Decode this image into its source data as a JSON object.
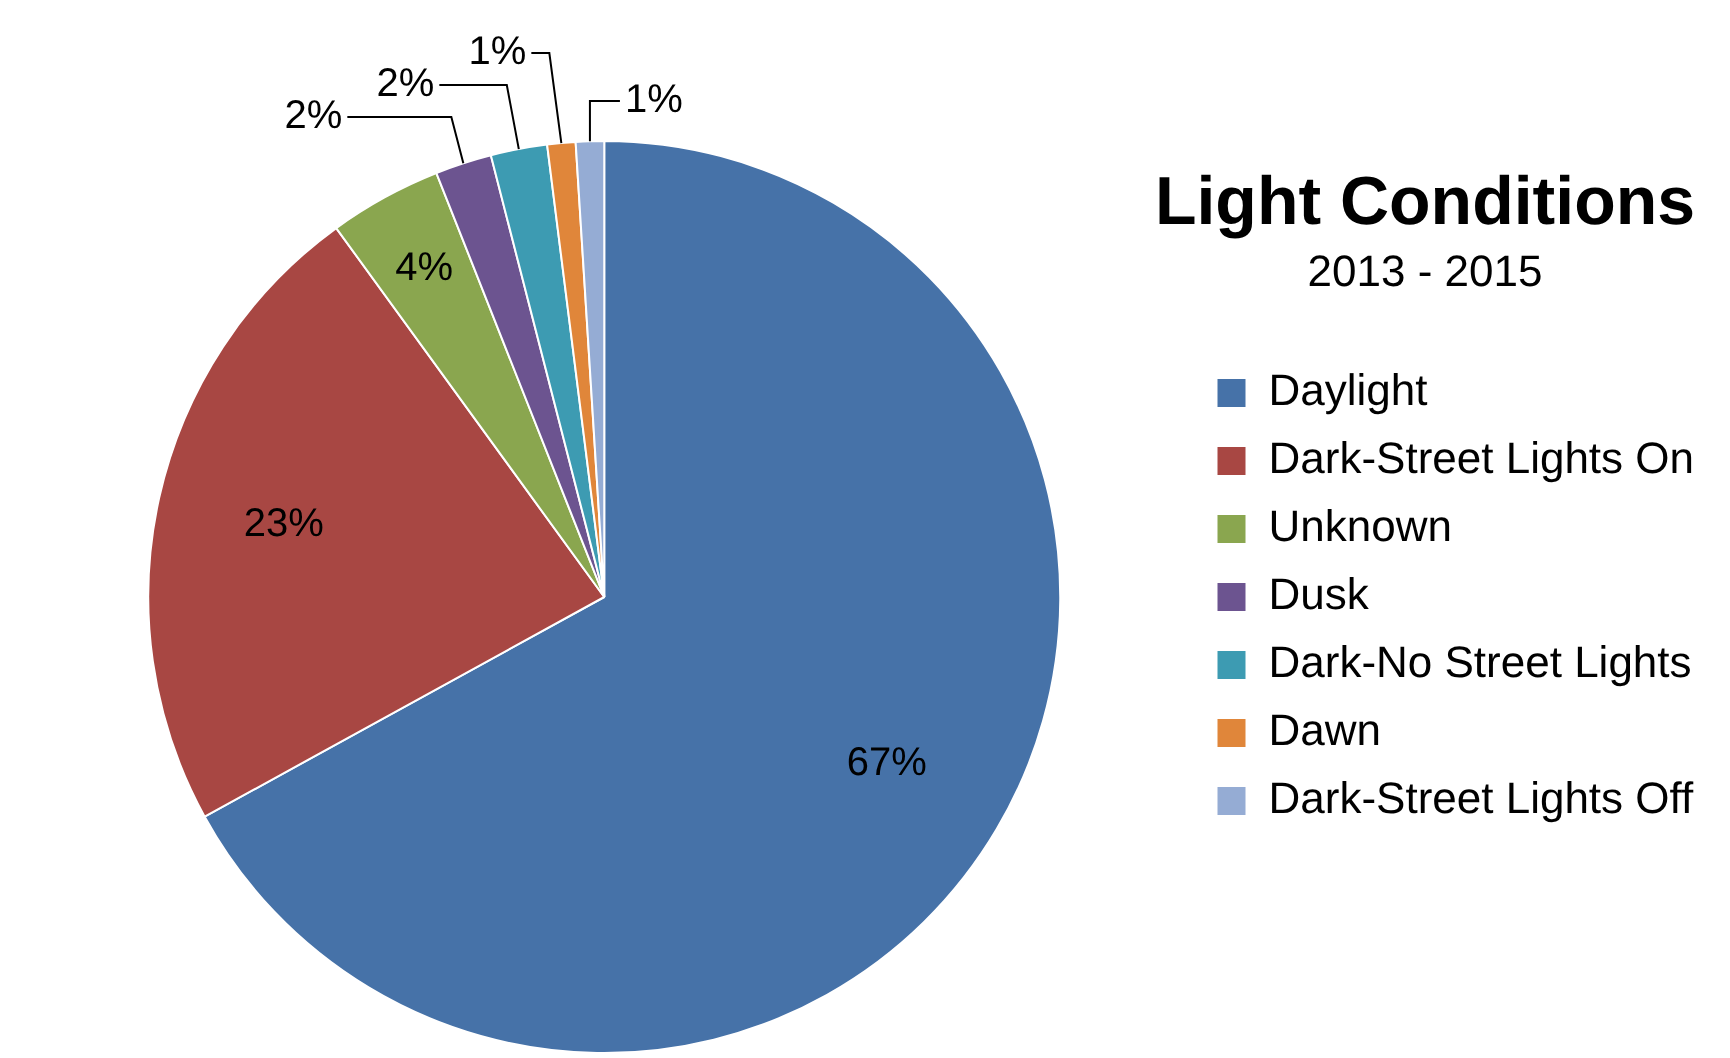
{
  "chart_data": {
    "type": "pie",
    "title": "Light Conditions",
    "subtitle": "2013 - 2015",
    "categories": [
      "Daylight",
      "Dark-Street Lights On",
      "Unknown",
      "Dusk",
      "Dark-No Street Lights",
      "Dawn",
      "Dark-Street Lights Off"
    ],
    "values": [
      67,
      23,
      4,
      2,
      2,
      1,
      1
    ],
    "colors": [
      "#4672a8",
      "#a84743",
      "#8aa64f",
      "#6c5490",
      "#3d9bb2",
      "#e0863a",
      "#95acd4"
    ],
    "value_labels": [
      "67%",
      "23%",
      "4%",
      "2%",
      "2%",
      "1%",
      "1%"
    ],
    "legend": "right"
  }
}
